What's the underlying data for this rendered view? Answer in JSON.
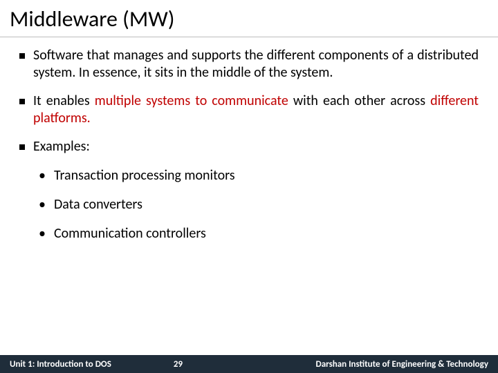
{
  "title": "Middleware (MW)",
  "bullets": {
    "b1": "Software that manages and supports the different components of a distributed system. In essence, it sits in the middle of the system.",
    "b2_pre": "It enables ",
    "b2_accent1": "multiple systems to communicate",
    "b2_mid": " with each other across ",
    "b2_accent2": "different platforms.",
    "b3": "Examples:",
    "sub1": "Transaction processing monitors",
    "sub2": "Data converters",
    "sub3": "Communication controllers"
  },
  "footer": {
    "left": "Unit 1: Introduction to DOS",
    "page": "29",
    "right": "Darshan Institute of Engineering & Technology"
  },
  "colors": {
    "accent": "#c00000",
    "footer_bg": "#1f2d3a",
    "text": "#000000"
  }
}
